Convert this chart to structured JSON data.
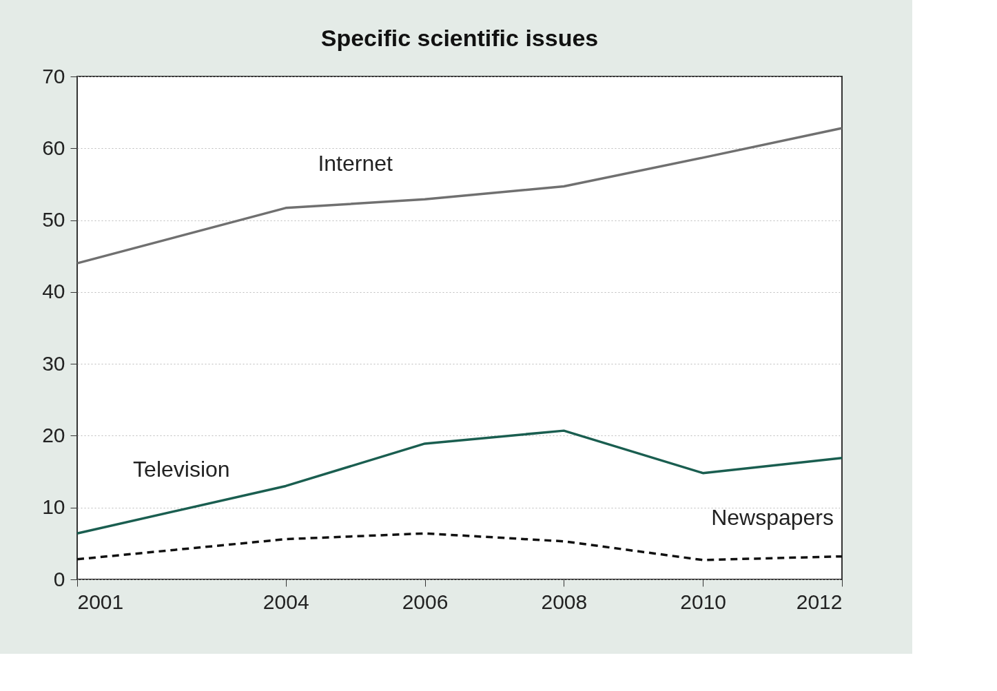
{
  "chart_data": {
    "type": "line",
    "title": "Specific scientific issues",
    "x": [
      2001,
      2004,
      2006,
      2008,
      2010,
      2012
    ],
    "series": [
      {
        "name": "Internet",
        "color": "#707070",
        "line_style": "solid",
        "values": [
          44.0,
          51.7,
          52.9,
          54.7,
          58.7,
          62.8
        ]
      },
      {
        "name": "Television",
        "color": "#1a5e50",
        "line_style": "solid",
        "values": [
          6.4,
          13.0,
          18.9,
          20.7,
          14.8,
          16.9
        ]
      },
      {
        "name": "Newspapers",
        "color": "#111111",
        "line_style": "dashed",
        "values": [
          2.8,
          5.6,
          6.4,
          5.3,
          2.7,
          3.2
        ]
      }
    ],
    "xlim": [
      2001,
      2012
    ],
    "xticks": [
      2001,
      2004,
      2006,
      2008,
      2010,
      2012
    ],
    "ylim": [
      0,
      70
    ],
    "yticks": [
      0,
      10,
      20,
      30,
      40,
      50,
      60,
      70
    ],
    "grid": "y",
    "legend": false,
    "marker": "none"
  }
}
